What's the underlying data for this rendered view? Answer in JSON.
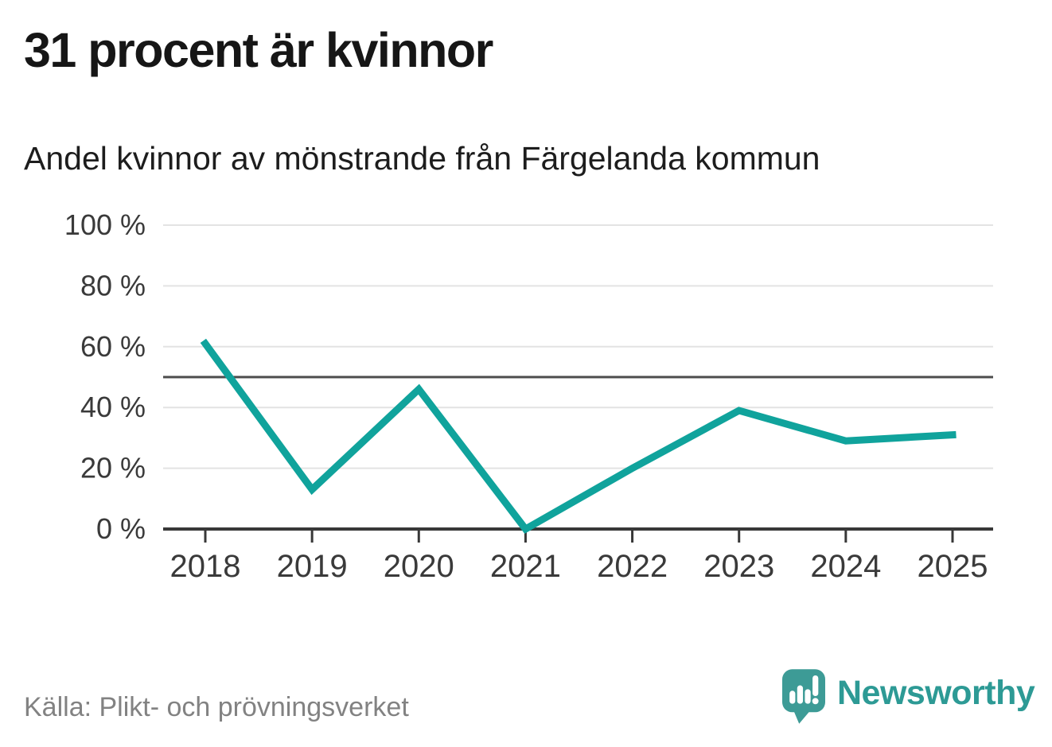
{
  "header": {
    "title": "31 procent är kvinnor",
    "subtitle": "Andel kvinnor av mönstrande från Färgelanda kommun"
  },
  "chart_data": {
    "type": "line",
    "x": [
      "2018",
      "2019",
      "2020",
      "2021",
      "2022",
      "2023",
      "2024",
      "2025"
    ],
    "series": [
      {
        "name": "andel-kvinnor",
        "label": "Andel kvinnor av mönstrande",
        "color": "#10a39c",
        "values": [
          61,
          13,
          46,
          0,
          20,
          39,
          29,
          31
        ]
      }
    ],
    "title": "31 procent är kvinnor",
    "subtitle": "Andel kvinnor av mönstrande från Färgelanda kommun",
    "xlabel": "",
    "ylabel": "",
    "ylim": [
      0,
      100
    ],
    "yticks": [
      {
        "value": 0,
        "label": "0 %"
      },
      {
        "value": 20,
        "label": "20 %"
      },
      {
        "value": 40,
        "label": "40 %"
      },
      {
        "value": 60,
        "label": "60 %"
      },
      {
        "value": 80,
        "label": "80 %"
      },
      {
        "value": 100,
        "label": "100 %"
      }
    ],
    "reference_line": 50,
    "grid": "horizontal",
    "legend": "none"
  },
  "footer": {
    "source": "Källa: Plikt- och prövningsverket",
    "brand": "Newsworthy"
  },
  "colors": {
    "line": "#10a39c",
    "grid": "#e3e3e3",
    "reference": "#4d4d4d",
    "axis": "#383838",
    "tick_label": "#3a3a3a",
    "title_text": "#161616",
    "muted_text": "#828282",
    "brand": "#2d9a95",
    "logo": "#3d9b96"
  },
  "icons": {
    "logo": "newsworthy-speech-bubble-bar-chart-icon"
  }
}
